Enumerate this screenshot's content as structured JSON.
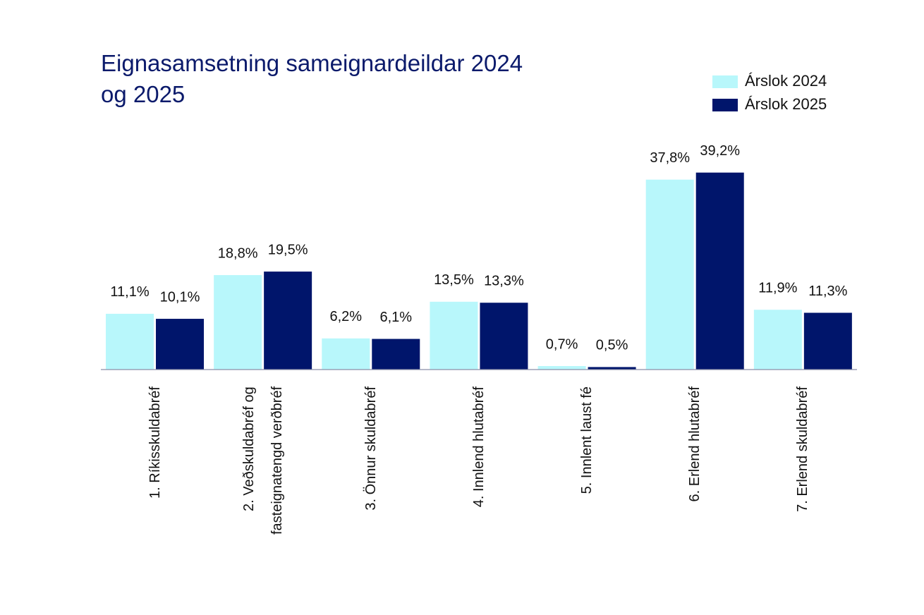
{
  "chart_data": {
    "type": "bar",
    "title": "Eignasamsetning sameignardeildar 2024 og 2025",
    "categories": [
      "1. Ríkisskuldabréf",
      "2. Veðskuldabréf og fasteignatengd verðbréf",
      "3. Önnur skuldabréf",
      "4. Innlend hlutabréf",
      "5. Innlent laust fé",
      "6. Erlend hlutabréf",
      "7. Erlend skuldabréf"
    ],
    "series": [
      {
        "name": "Árslok 2024",
        "color": "#b8f7fb",
        "values": [
          11.1,
          18.8,
          6.2,
          13.5,
          0.7,
          37.8,
          11.9
        ],
        "value_labels": [
          "11,1%",
          "18,8%",
          "6,2%",
          "13,5%",
          "0,7%",
          "37,8%",
          "11,9%"
        ]
      },
      {
        "name": "Árslok 2025",
        "color": "#00156b",
        "values": [
          10.1,
          19.5,
          6.1,
          13.3,
          0.5,
          39.2,
          11.3
        ],
        "value_labels": [
          "10,1%",
          "19,5%",
          "6,1%",
          "13,3%",
          "0,5%",
          "39,2%",
          "11,3%"
        ]
      }
    ],
    "ylim": [
      0,
      40
    ],
    "legend": "top-right"
  }
}
